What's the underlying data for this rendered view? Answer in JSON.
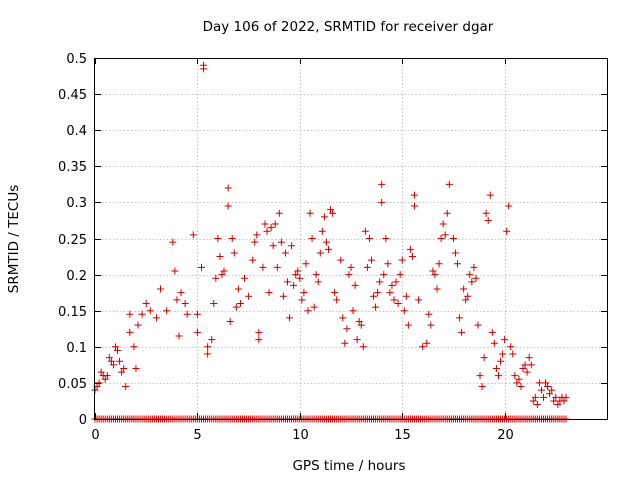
{
  "chart_data": {
    "type": "scatter",
    "title": "Day 106 of 2022, SRMTID for receiver dgar",
    "xlabel": "GPS time / hours",
    "ylabel": "SRMTID / TECUs",
    "xlim": [
      0,
      25
    ],
    "ylim": [
      0,
      0.5
    ],
    "xticks": [
      0,
      5,
      10,
      15,
      20
    ],
    "yticks": [
      0,
      0.05,
      0.1,
      0.15,
      0.2,
      0.25,
      0.3,
      0.35,
      0.4,
      0.45,
      0.5
    ],
    "xtick_labels": [
      "0",
      "5",
      "10",
      "15",
      "20"
    ],
    "ytick_labels": [
      "0",
      "0.05",
      "0.1",
      "0.15",
      "0.2",
      "0.25",
      "0.3",
      "0.35",
      "0.4",
      "0.45",
      "0.5"
    ],
    "grid": true,
    "marker": "+",
    "color": "#cc0000",
    "series": [
      {
        "name": "SRMTID",
        "zero_baseline": {
          "x_start": 0.0,
          "x_end": 23.0,
          "x_step": 0.1,
          "y": 0
        },
        "points": [
          [
            0.0,
            0.04
          ],
          [
            0.1,
            0.045
          ],
          [
            0.2,
            0.05
          ],
          [
            0.3,
            0.065
          ],
          [
            0.4,
            0.06
          ],
          [
            0.5,
            0.055
          ],
          [
            0.6,
            0.06
          ],
          [
            0.7,
            0.085
          ],
          [
            0.8,
            0.08
          ],
          [
            0.9,
            0.075
          ],
          [
            1.0,
            0.1
          ],
          [
            1.1,
            0.095
          ],
          [
            1.2,
            0.08
          ],
          [
            1.3,
            0.065
          ],
          [
            1.4,
            0.07
          ],
          [
            1.5,
            0.045
          ],
          [
            1.7,
            0.145
          ],
          [
            1.7,
            0.12
          ],
          [
            1.9,
            0.1
          ],
          [
            2.0,
            0.07
          ],
          [
            2.1,
            0.13
          ],
          [
            2.3,
            0.145
          ],
          [
            2.5,
            0.16
          ],
          [
            2.7,
            0.15
          ],
          [
            3.0,
            0.14
          ],
          [
            3.2,
            0.18
          ],
          [
            3.5,
            0.15
          ],
          [
            3.8,
            0.245
          ],
          [
            3.9,
            0.205
          ],
          [
            4.0,
            0.165
          ],
          [
            4.1,
            0.115
          ],
          [
            4.2,
            0.175
          ],
          [
            4.4,
            0.16
          ],
          [
            4.5,
            0.145
          ],
          [
            4.8,
            0.255
          ],
          [
            5.0,
            0.145
          ],
          [
            5.0,
            0.12
          ],
          [
            5.2,
            0.21
          ],
          [
            5.3,
            0.49
          ],
          [
            5.3,
            0.485
          ],
          [
            5.5,
            0.1
          ],
          [
            5.5,
            0.09
          ],
          [
            5.7,
            0.11
          ],
          [
            5.8,
            0.16
          ],
          [
            5.9,
            0.195
          ],
          [
            6.0,
            0.25
          ],
          [
            6.1,
            0.225
          ],
          [
            6.2,
            0.2
          ],
          [
            6.3,
            0.205
          ],
          [
            6.5,
            0.32
          ],
          [
            6.5,
            0.295
          ],
          [
            6.6,
            0.135
          ],
          [
            6.7,
            0.25
          ],
          [
            6.8,
            0.23
          ],
          [
            6.9,
            0.155
          ],
          [
            7.0,
            0.18
          ],
          [
            7.1,
            0.16
          ],
          [
            7.3,
            0.195
          ],
          [
            7.5,
            0.17
          ],
          [
            7.7,
            0.22
          ],
          [
            7.8,
            0.245
          ],
          [
            7.9,
            0.255
          ],
          [
            8.0,
            0.11
          ],
          [
            8.0,
            0.12
          ],
          [
            8.2,
            0.21
          ],
          [
            8.3,
            0.27
          ],
          [
            8.4,
            0.26
          ],
          [
            8.5,
            0.175
          ],
          [
            8.6,
            0.265
          ],
          [
            8.7,
            0.24
          ],
          [
            8.8,
            0.27
          ],
          [
            8.9,
            0.21
          ],
          [
            9.0,
            0.285
          ],
          [
            9.1,
            0.245
          ],
          [
            9.2,
            0.17
          ],
          [
            9.3,
            0.23
          ],
          [
            9.4,
            0.19
          ],
          [
            9.5,
            0.14
          ],
          [
            9.6,
            0.24
          ],
          [
            9.7,
            0.185
          ],
          [
            9.8,
            0.2
          ],
          [
            9.9,
            0.205
          ],
          [
            10.0,
            0.195
          ],
          [
            10.1,
            0.165
          ],
          [
            10.2,
            0.175
          ],
          [
            10.3,
            0.215
          ],
          [
            10.4,
            0.15
          ],
          [
            10.5,
            0.285
          ],
          [
            10.6,
            0.25
          ],
          [
            10.7,
            0.155
          ],
          [
            10.8,
            0.2
          ],
          [
            10.9,
            0.19
          ],
          [
            11.0,
            0.23
          ],
          [
            11.1,
            0.26
          ],
          [
            11.2,
            0.28
          ],
          [
            11.3,
            0.245
          ],
          [
            11.4,
            0.235
          ],
          [
            11.5,
            0.29
          ],
          [
            11.6,
            0.285
          ],
          [
            11.7,
            0.175
          ],
          [
            11.8,
            0.165
          ],
          [
            12.0,
            0.22
          ],
          [
            12.1,
            0.14
          ],
          [
            12.2,
            0.105
          ],
          [
            12.3,
            0.125
          ],
          [
            12.4,
            0.2
          ],
          [
            12.5,
            0.21
          ],
          [
            12.6,
            0.15
          ],
          [
            12.7,
            0.185
          ],
          [
            12.8,
            0.11
          ],
          [
            12.9,
            0.135
          ],
          [
            13.0,
            0.13
          ],
          [
            13.1,
            0.1
          ],
          [
            13.2,
            0.26
          ],
          [
            13.3,
            0.21
          ],
          [
            13.4,
            0.25
          ],
          [
            13.5,
            0.22
          ],
          [
            13.6,
            0.17
          ],
          [
            13.7,
            0.155
          ],
          [
            13.8,
            0.175
          ],
          [
            13.9,
            0.19
          ],
          [
            14.0,
            0.325
          ],
          [
            14.0,
            0.3
          ],
          [
            14.1,
            0.2
          ],
          [
            14.2,
            0.25
          ],
          [
            14.3,
            0.215
          ],
          [
            14.4,
            0.175
          ],
          [
            14.5,
            0.185
          ],
          [
            14.6,
            0.165
          ],
          [
            14.7,
            0.19
          ],
          [
            14.8,
            0.16
          ],
          [
            14.9,
            0.2
          ],
          [
            15.0,
            0.22
          ],
          [
            15.1,
            0.15
          ],
          [
            15.2,
            0.17
          ],
          [
            15.3,
            0.13
          ],
          [
            15.4,
            0.235
          ],
          [
            15.5,
            0.225
          ],
          [
            15.6,
            0.31
          ],
          [
            15.6,
            0.295
          ],
          [
            15.8,
            0.165
          ],
          [
            16.0,
            0.1
          ],
          [
            16.2,
            0.105
          ],
          [
            16.3,
            0.145
          ],
          [
            16.4,
            0.13
          ],
          [
            16.5,
            0.205
          ],
          [
            16.6,
            0.2
          ],
          [
            16.7,
            0.18
          ],
          [
            16.8,
            0.215
          ],
          [
            16.9,
            0.25
          ],
          [
            17.0,
            0.27
          ],
          [
            17.1,
            0.255
          ],
          [
            17.2,
            0.285
          ],
          [
            17.3,
            0.325
          ],
          [
            17.5,
            0.25
          ],
          [
            17.6,
            0.23
          ],
          [
            17.7,
            0.215
          ],
          [
            17.8,
            0.14
          ],
          [
            17.9,
            0.12
          ],
          [
            18.0,
            0.18
          ],
          [
            18.1,
            0.165
          ],
          [
            18.2,
            0.17
          ],
          [
            18.3,
            0.2
          ],
          [
            18.4,
            0.19
          ],
          [
            18.5,
            0.21
          ],
          [
            18.6,
            0.195
          ],
          [
            18.7,
            0.13
          ],
          [
            18.8,
            0.06
          ],
          [
            18.9,
            0.045
          ],
          [
            19.0,
            0.085
          ],
          [
            19.1,
            0.285
          ],
          [
            19.2,
            0.275
          ],
          [
            19.3,
            0.31
          ],
          [
            19.4,
            0.12
          ],
          [
            19.5,
            0.105
          ],
          [
            19.6,
            0.07
          ],
          [
            19.7,
            0.06
          ],
          [
            19.8,
            0.08
          ],
          [
            19.9,
            0.09
          ],
          [
            20.0,
            0.11
          ],
          [
            20.1,
            0.26
          ],
          [
            20.2,
            0.295
          ],
          [
            20.3,
            0.1
          ],
          [
            20.4,
            0.09
          ],
          [
            20.5,
            0.06
          ],
          [
            20.6,
            0.05
          ],
          [
            20.7,
            0.055
          ],
          [
            20.8,
            0.045
          ],
          [
            20.9,
            0.07
          ],
          [
            21.0,
            0.075
          ],
          [
            21.1,
            0.065
          ],
          [
            21.2,
            0.085
          ],
          [
            21.3,
            0.075
          ],
          [
            21.4,
            0.025
          ],
          [
            21.5,
            0.03
          ],
          [
            21.6,
            0.02
          ],
          [
            21.7,
            0.05
          ],
          [
            21.8,
            0.04
          ],
          [
            21.9,
            0.03
          ],
          [
            22.0,
            0.05
          ],
          [
            22.1,
            0.045
          ],
          [
            22.2,
            0.035
          ],
          [
            22.3,
            0.04
          ],
          [
            22.4,
            0.025
          ],
          [
            22.5,
            0.03
          ],
          [
            22.6,
            0.02
          ],
          [
            22.7,
            0.025
          ],
          [
            22.8,
            0.03
          ],
          [
            22.9,
            0.025
          ],
          [
            23.0,
            0.03
          ]
        ]
      }
    ]
  }
}
